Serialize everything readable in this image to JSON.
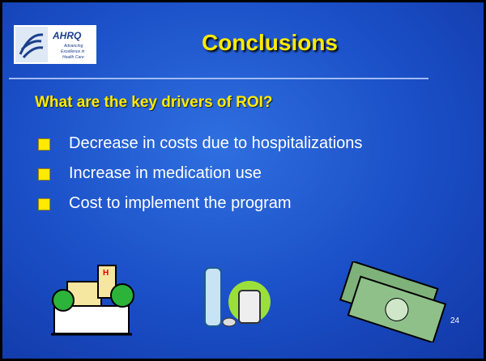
{
  "header": {
    "title": "Conclusions",
    "logo": {
      "name": "AHRQ",
      "tagline": [
        "Advancing",
        "Excellence in",
        "Health Care"
      ]
    }
  },
  "subtitle": "What are the key drivers of ROI?",
  "bullets": [
    "Decrease in costs due to hospitalizations",
    "Increase in medication use",
    "Cost to implement the program"
  ],
  "slide_number": "24"
}
